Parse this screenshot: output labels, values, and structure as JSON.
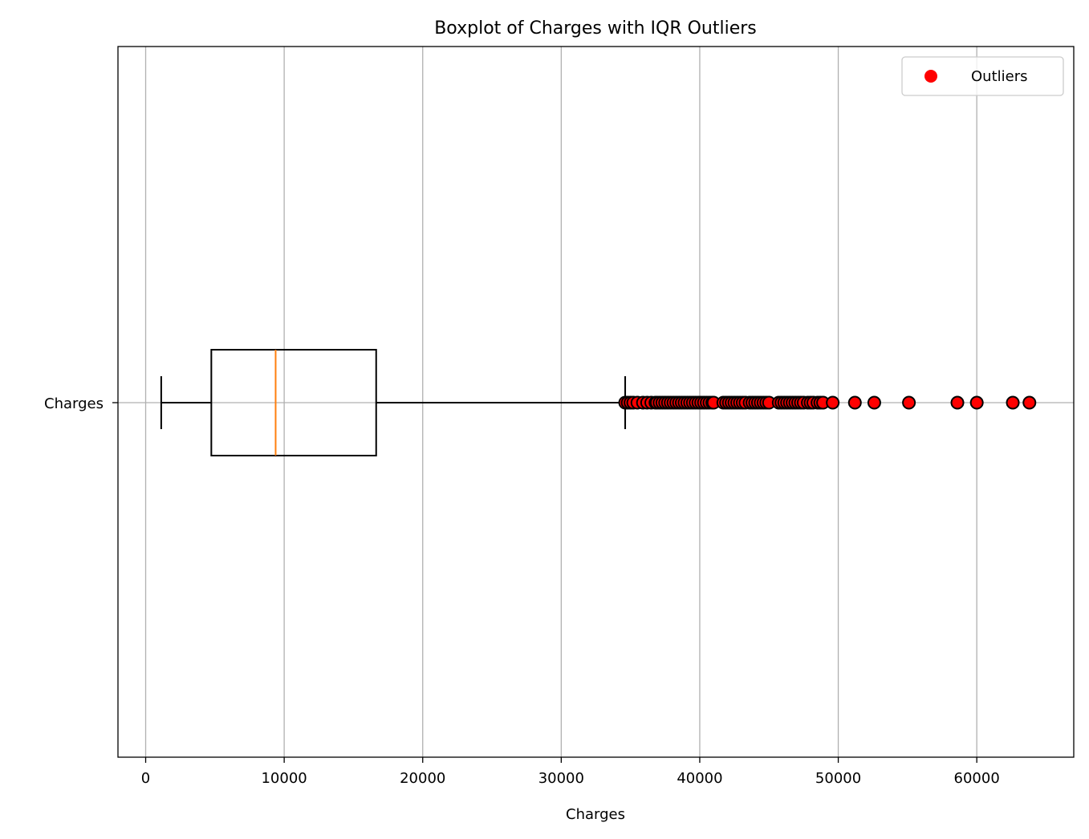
{
  "chart_data": {
    "type": "boxplot",
    "orientation": "horizontal",
    "title": "Boxplot of Charges with IQR Outliers",
    "xlabel": "Charges",
    "ylabel": "",
    "xlim": [
      -2000,
      67000
    ],
    "xticks": [
      0,
      10000,
      20000,
      30000,
      40000,
      50000,
      60000
    ],
    "xtick_labels": [
      "0",
      "10000",
      "20000",
      "30000",
      "40000",
      "50000",
      "60000"
    ],
    "grid": true,
    "categories": [
      "Charges"
    ],
    "box": {
      "whisker_low": 1122,
      "q1": 4740,
      "median": 9382,
      "q3": 16640,
      "whisker_high": 34617
    },
    "outliers": [
      34617,
      34800,
      35000,
      35200,
      35500,
      35900,
      36200,
      36500,
      36800,
      36900,
      37100,
      37300,
      37500,
      37700,
      37900,
      38100,
      38300,
      38500,
      38700,
      38900,
      39100,
      39300,
      39500,
      39700,
      39900,
      40100,
      40300,
      40500,
      40700,
      40900,
      41000,
      41700,
      41900,
      42100,
      42300,
      42500,
      42700,
      42900,
      43100,
      43300,
      43600,
      43800,
      44000,
      44200,
      44400,
      44600,
      44800,
      45000,
      45700,
      45900,
      46100,
      46300,
      46500,
      46700,
      46900,
      47100,
      47300,
      47500,
      47800,
      48000,
      48200,
      48500,
      48700,
      48900,
      49600,
      51200,
      52600,
      55100,
      58600,
      60000,
      62600,
      63800
    ],
    "legend": {
      "position": "top-right",
      "entries": [
        {
          "label": "Outliers",
          "color": "#ff0000"
        }
      ]
    },
    "colors": {
      "box": "#000000",
      "median": "#ff7f0e",
      "outlier_fill": "#ff0000",
      "outlier_edge": "#000000",
      "grid": "#b0b0b0"
    }
  }
}
